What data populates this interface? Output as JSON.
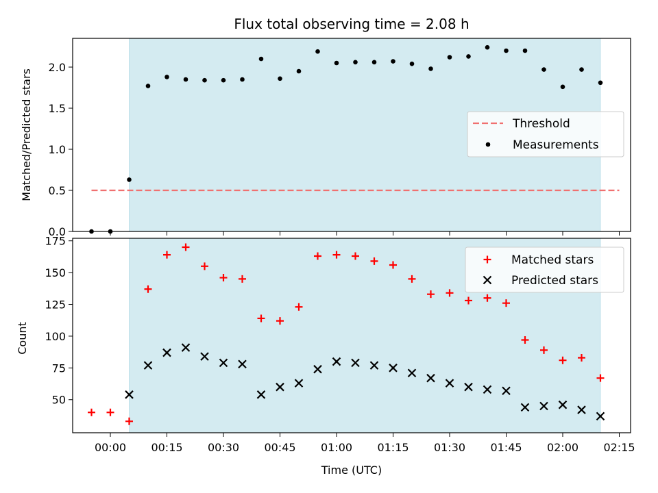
{
  "chart_data": [
    {
      "type": "scatter",
      "title": "Flux total observing time = 2.08 h",
      "xlabel": "",
      "ylabel": "Matched/Predicted stars",
      "ylim": [
        0,
        2.35
      ],
      "yticks": [
        0.0,
        0.5,
        1.0,
        1.5,
        2.0
      ],
      "ytick_labels": [
        "0.0",
        "0.5",
        "1.0",
        "1.5",
        "2.0"
      ],
      "legend": {
        "position": "center-right",
        "entries": [
          "Threshold",
          "Measurements"
        ]
      },
      "observing_window_minutes": [
        5,
        130
      ],
      "threshold": {
        "name": "Threshold",
        "value": 0.5,
        "x_minutes": [
          -5,
          135
        ],
        "color": "#f07070"
      },
      "series": [
        {
          "name": "Measurements",
          "color": "#000000",
          "x_minutes": [
            -5,
            0,
            5,
            10,
            15,
            20,
            25,
            30,
            35,
            40,
            45,
            50,
            55,
            60,
            65,
            70,
            75,
            80,
            85,
            90,
            95,
            100,
            105,
            110,
            115,
            120,
            125,
            130
          ],
          "values": [
            0.0,
            0.0,
            0.63,
            1.77,
            1.88,
            1.85,
            1.84,
            1.84,
            1.85,
            2.1,
            1.86,
            1.95,
            2.19,
            2.05,
            2.06,
            2.06,
            2.07,
            2.04,
            1.98,
            2.12,
            2.13,
            2.24,
            2.2,
            2.2,
            1.97,
            1.76,
            1.97,
            1.81
          ]
        }
      ]
    },
    {
      "type": "scatter",
      "title": "",
      "xlabel": "Time (UTC)",
      "ylabel": "Count",
      "ylim": [
        24,
        177
      ],
      "yticks": [
        50,
        75,
        100,
        125,
        150,
        175
      ],
      "ytick_labels": [
        "50",
        "75",
        "100",
        "125",
        "150",
        "175"
      ],
      "x_ticks_minutes": [
        0,
        15,
        30,
        45,
        60,
        75,
        90,
        105,
        120,
        135
      ],
      "x_tick_labels": [
        "00:00",
        "00:15",
        "00:30",
        "00:45",
        "01:00",
        "01:15",
        "01:30",
        "01:45",
        "02:00",
        "02:15"
      ],
      "xlim_minutes": [
        -10,
        138
      ],
      "legend": {
        "position": "top-right",
        "entries": [
          "Matched stars",
          "Predicted stars"
        ]
      },
      "observing_window_minutes": [
        5,
        130
      ],
      "series": [
        {
          "name": "Matched stars",
          "marker": "plus",
          "color": "#ff0000",
          "x_minutes": [
            -5,
            0,
            5,
            10,
            15,
            20,
            25,
            30,
            35,
            40,
            45,
            50,
            55,
            60,
            65,
            70,
            75,
            80,
            85,
            90,
            95,
            100,
            105,
            110,
            115,
            120,
            125,
            130
          ],
          "values": [
            40,
            40,
            33,
            137,
            164,
            170,
            155,
            146,
            145,
            114,
            112,
            123,
            163,
            164,
            163,
            159,
            156,
            145,
            133,
            134,
            128,
            130,
            126,
            97,
            89,
            81,
            83,
            67
          ]
        },
        {
          "name": "Predicted stars",
          "marker": "x",
          "color": "#000000",
          "x_minutes": [
            5,
            10,
            15,
            20,
            25,
            30,
            35,
            40,
            45,
            50,
            55,
            60,
            65,
            70,
            75,
            80,
            85,
            90,
            95,
            100,
            105,
            110,
            115,
            120,
            125,
            130
          ],
          "values": [
            54,
            77,
            87,
            91,
            84,
            79,
            78,
            54,
            60,
            63,
            74,
            80,
            79,
            77,
            75,
            71,
            67,
            63,
            60,
            58,
            57,
            44,
            45,
            46,
            42,
            37
          ]
        }
      ]
    }
  ],
  "colors": {
    "window_fill": "#d4ebf1",
    "window_edge": "#bfe0ea"
  }
}
